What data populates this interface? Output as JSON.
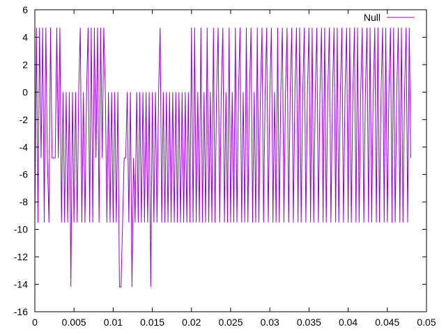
{
  "chart_data": {
    "type": "line",
    "title": "",
    "xlabel": "",
    "ylabel": "",
    "xlim": [
      0,
      0.05
    ],
    "ylim": [
      -16,
      6
    ],
    "x_ticks": [
      "0",
      "0.005",
      "0.01",
      "0.015",
      "0.02",
      "0.025",
      "0.03",
      "0.035",
      "0.04",
      "0.045",
      "0.05"
    ],
    "x_tick_values": [
      0,
      0.005,
      0.01,
      0.015,
      0.02,
      0.025,
      0.03,
      0.035,
      0.04,
      0.045,
      0.05
    ],
    "y_ticks": [
      "6",
      "4",
      "2",
      "0",
      "-2",
      "-4",
      "-6",
      "-8",
      "-10",
      "-12",
      "-14",
      "-16"
    ],
    "y_tick_values": [
      6,
      4,
      2,
      0,
      -2,
      -4,
      -6,
      -8,
      -10,
      -12,
      -14,
      -16
    ],
    "grid": false,
    "legend_position": "top-right",
    "discrete_levels": [
      4.7,
      0,
      -4.8,
      -9.5,
      -14.2
    ],
    "series": [
      {
        "name": "Null",
        "color": "#9400d3",
        "sample_step": 0.0002,
        "x_start": 0,
        "values": [
          -9.5,
          4.7,
          -9.5,
          4.7,
          -4.8,
          4.7,
          -9.5,
          4.7,
          -4.8,
          -9.5,
          4.7,
          -4.8,
          -4.8,
          -4.8,
          4.7,
          -4.8,
          4.7,
          -9.5,
          0,
          -9.5,
          0,
          -9.5,
          0,
          -14.2,
          0,
          -9.5,
          0,
          -9.5,
          0,
          4.7,
          -9.5,
          0,
          -9.5,
          0,
          4.7,
          -9.5,
          4.7,
          -9.5,
          4.7,
          -4.8,
          4.7,
          -9.5,
          4.7,
          -4.8,
          4.7,
          0,
          -9.5,
          0,
          -9.5,
          0,
          -9.5,
          0,
          -9.5,
          0,
          -14.2,
          -14.2,
          -9.5,
          -4.8,
          -4.8,
          0,
          -9.5,
          0,
          -14.2,
          -4.8,
          -9.5,
          0,
          -9.5,
          0,
          -9.5,
          0,
          -9.5,
          0,
          -9.5,
          0,
          -14.2,
          0,
          -9.5,
          0,
          -9.5,
          0,
          4.7,
          -9.5,
          0,
          -9.5,
          0,
          -9.5,
          0,
          -9.5,
          0,
          -9.5,
          0,
          -9.5,
          0,
          -9.5,
          0,
          -9.5,
          0,
          -9.5,
          0,
          -9.5,
          4.7,
          -9.5,
          4.7,
          -9.5,
          0,
          -9.5,
          4.7,
          -9.5,
          0,
          -9.5,
          4.7,
          -9.5,
          0,
          -9.5,
          4.7,
          -9.5,
          0,
          4.7,
          -9.5,
          0,
          4.7,
          -9.5,
          0,
          -9.5,
          4.7,
          -9.5,
          0,
          -9.5,
          4.7,
          -9.5,
          0,
          4.7,
          -9.5,
          0,
          -9.5,
          4.7,
          -9.5,
          0,
          4.7,
          -9.5,
          0,
          -9.5,
          4.7,
          -9.5,
          0,
          4.7,
          -9.5,
          0,
          4.7,
          -9.5,
          0,
          4.7,
          -9.5,
          0,
          -9.5,
          4.7,
          -9.5,
          0,
          4.7,
          -9.5,
          0,
          4.7,
          -9.5,
          0,
          4.7,
          -9.5,
          0,
          4.7,
          -9.5,
          4.7,
          -9.5,
          0,
          4.7,
          -9.5,
          0,
          4.7,
          -9.5,
          4.7,
          -9.5,
          0,
          4.7,
          -9.5,
          0,
          4.7,
          -9.5,
          4.7,
          -9.5,
          0,
          4.7,
          -9.5,
          0,
          4.7,
          -9.5,
          4.7,
          -9.5,
          0,
          4.7,
          -9.5,
          0,
          4.7,
          -9.5,
          4.7,
          -9.5,
          0,
          4.7,
          -9.5,
          4.7,
          -9.5,
          0,
          4.7,
          -9.5,
          0,
          4.7,
          -9.5,
          4.7,
          -9.5,
          0,
          4.7,
          -9.5,
          4.7,
          -9.5,
          0,
          4.7,
          -9.5,
          4.7,
          -9.5,
          0,
          4.7,
          -9.5,
          4.7,
          -9.5,
          0,
          4.7,
          -9.5,
          4.7,
          -9.5,
          0,
          4.7,
          -9.5,
          4.7,
          -4.8
        ]
      }
    ]
  }
}
